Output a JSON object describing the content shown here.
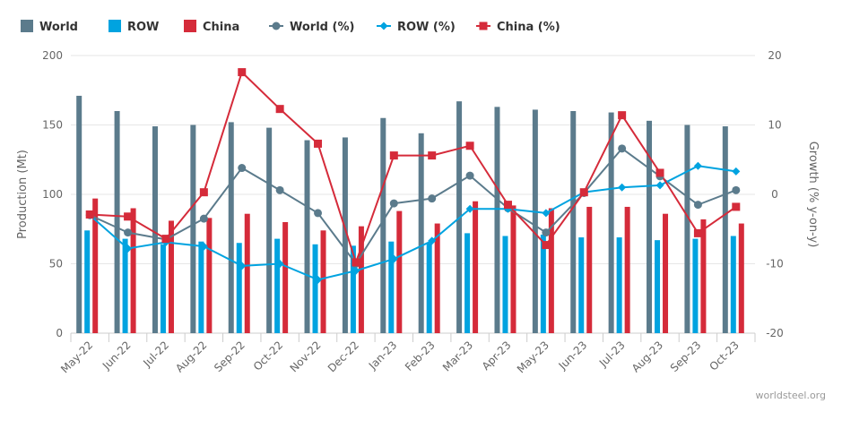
{
  "chart_data": {
    "type": "bar",
    "categories": [
      "May-22",
      "Jun-22",
      "Jul-22",
      "Aug-22",
      "Sep-22",
      "Oct-22",
      "Nov-22",
      "Dec-22",
      "Jan-23",
      "Feb-23",
      "Mar-23",
      "Apr-23",
      "May-23",
      "Jun-23",
      "Jul-23",
      "Aug-23",
      "Sep-23",
      "Oct-23"
    ],
    "y_left": {
      "title": "Production (Mt)",
      "min": 0,
      "max": 200,
      "ticks": [
        0,
        50,
        100,
        150,
        200
      ]
    },
    "y_right": {
      "title": "Growth (% y-on-y)",
      "min": -20,
      "max": 20,
      "ticks": [
        -20,
        -10,
        0,
        10,
        20
      ]
    },
    "bar_series": [
      {
        "name": "World",
        "color": "#5b7b8c",
        "values": [
          171,
          160,
          149,
          150,
          152,
          148,
          139,
          141,
          155,
          144,
          167,
          163,
          161,
          160,
          159,
          153,
          150,
          149
        ]
      },
      {
        "name": "ROW",
        "color": "#00a3e0",
        "values": [
          74,
          68,
          64,
          66,
          65,
          68,
          64,
          63,
          66,
          65,
          72,
          70,
          71,
          69,
          69,
          67,
          68,
          70
        ]
      },
      {
        "name": "China",
        "color": "#d52b3a",
        "values": [
          97,
          90,
          81,
          83,
          86,
          80,
          74,
          77,
          88,
          79,
          95,
          92,
          90,
          91,
          91,
          86,
          82,
          79
        ]
      }
    ],
    "line_series": [
      {
        "name": "World (%)",
        "color": "#5b7b8c",
        "marker": "circle",
        "values": [
          -3.0,
          -5.5,
          -6.5,
          -3.5,
          3.8,
          0.6,
          -2.7,
          -10.0,
          -1.3,
          -0.6,
          2.7,
          -2.0,
          -5.5,
          0.2,
          6.6,
          2.6,
          -1.5,
          0.6
        ]
      },
      {
        "name": "ROW (%)",
        "color": "#00a3e0",
        "marker": "diamond",
        "values": [
          -3.0,
          -7.8,
          -6.9,
          -7.5,
          -10.3,
          -10.0,
          -12.3,
          -11.0,
          -9.3,
          -6.7,
          -2.1,
          -2.1,
          -2.7,
          0.3,
          1.0,
          1.3,
          4.1,
          3.3
        ]
      },
      {
        "name": "China (%)",
        "color": "#d52b3a",
        "marker": "square",
        "values": [
          -2.9,
          -3.2,
          -6.4,
          0.3,
          17.6,
          12.3,
          7.3,
          -9.8,
          5.6,
          5.6,
          7.0,
          -1.5,
          -7.3,
          0.3,
          11.4,
          3.1,
          -5.6,
          -1.8
        ]
      }
    ],
    "credit": "worldsteel.org"
  }
}
